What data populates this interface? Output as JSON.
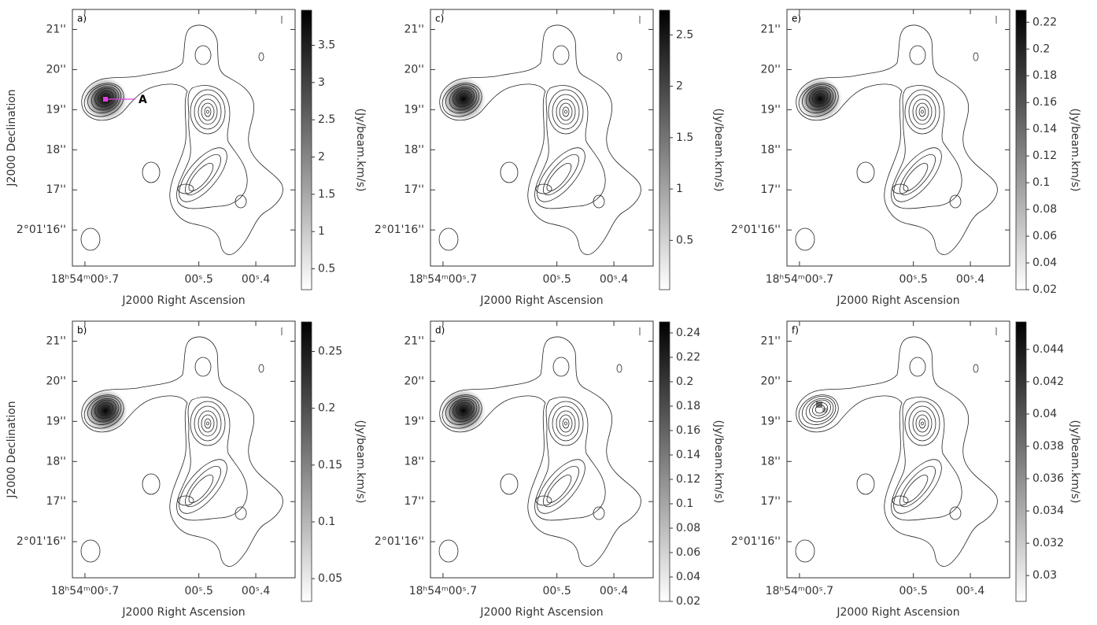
{
  "chart_data": [
    {
      "type": "contour-map",
      "panel_label": "a)",
      "annotation": "A",
      "xlabel": "J2000 Right Ascension",
      "ylabel": "J2000 Declination",
      "colorbar_label": "(Jy/beam.km/s)",
      "xlim": [
        0.722,
        0.331
      ],
      "xticks": [
        {
          "value": 0.7,
          "label": "18ʰ54ᵐ00ˢ.7"
        },
        {
          "value": 0.5,
          "label": "00ˢ.5"
        },
        {
          "value": 0.4,
          "label": "00ˢ.4"
        }
      ],
      "ylim": [
        15.1,
        21.5
      ],
      "yticks": [
        {
          "value": 16,
          "label": "2°01'16''"
        },
        {
          "value": 17,
          "label": "17''"
        },
        {
          "value": 18,
          "label": "18''"
        },
        {
          "value": 19,
          "label": "19''"
        },
        {
          "value": 20,
          "label": "20''"
        },
        {
          "value": 21,
          "label": "21''"
        }
      ],
      "clim": [
        0.22,
        3.97
      ],
      "cticks": [
        0.5,
        1,
        1.5,
        2,
        2.5,
        3,
        3.5
      ]
    },
    {
      "type": "contour-map",
      "panel_label": "b)",
      "xlabel": "J2000 Right Ascension",
      "ylabel": "J2000 Declination",
      "colorbar_label": "(Jy/beam.km/s)",
      "xlim": [
        0.722,
        0.331
      ],
      "xticks": [
        {
          "value": 0.7,
          "label": "18ʰ54ᵐ00ˢ.7"
        },
        {
          "value": 0.5,
          "label": "00ˢ.5"
        },
        {
          "value": 0.4,
          "label": "00ˢ.4"
        }
      ],
      "ylim": [
        15.1,
        21.5
      ],
      "yticks": [
        {
          "value": 16,
          "label": "2°01'16''"
        },
        {
          "value": 17,
          "label": "17''"
        },
        {
          "value": 18,
          "label": "18''"
        },
        {
          "value": 19,
          "label": "19''"
        },
        {
          "value": 20,
          "label": "20''"
        },
        {
          "value": 21,
          "label": "21''"
        }
      ],
      "clim": [
        0.03,
        0.276
      ],
      "cticks": [
        0.05,
        0.1,
        0.15,
        0.2,
        0.25
      ]
    },
    {
      "type": "contour-map",
      "panel_label": "c)",
      "xlabel": "J2000 Right Ascension",
      "colorbar_label": "(Jy/beam.km/s)",
      "xlim": [
        0.722,
        0.331
      ],
      "xticks": [
        {
          "value": 0.7,
          "label": "18ʰ54ᵐ00ˢ.7"
        },
        {
          "value": 0.5,
          "label": "00ˢ.5"
        },
        {
          "value": 0.4,
          "label": "00ˢ.4"
        }
      ],
      "ylim": [
        15.1,
        21.5
      ],
      "yticks": [
        {
          "value": 16,
          "label": "2°01'16''"
        },
        {
          "value": 17,
          "label": "17''"
        },
        {
          "value": 18,
          "label": "18''"
        },
        {
          "value": 19,
          "label": "19''"
        },
        {
          "value": 20,
          "label": "20''"
        },
        {
          "value": 21,
          "label": "21''"
        }
      ],
      "clim": [
        0.02,
        2.74
      ],
      "cticks": [
        0.5,
        1,
        1.5,
        2,
        2.5
      ]
    },
    {
      "type": "contour-map",
      "panel_label": "d)",
      "xlabel": "J2000 Right Ascension",
      "colorbar_label": "(Jy/beam.km/s)",
      "xlim": [
        0.722,
        0.331
      ],
      "xticks": [
        {
          "value": 0.7,
          "label": "18ʰ54ᵐ00ˢ.7"
        },
        {
          "value": 0.5,
          "label": "00ˢ.5"
        },
        {
          "value": 0.4,
          "label": "00ˢ.4"
        }
      ],
      "ylim": [
        15.1,
        21.5
      ],
      "yticks": [
        {
          "value": 16,
          "label": "2°01'16''"
        },
        {
          "value": 17,
          "label": "17''"
        },
        {
          "value": 18,
          "label": "18''"
        },
        {
          "value": 19,
          "label": "19''"
        },
        {
          "value": 20,
          "label": "20''"
        },
        {
          "value": 21,
          "label": "21''"
        }
      ],
      "clim": [
        0.02,
        0.249
      ],
      "cticks": [
        0.02,
        0.04,
        0.06,
        0.08,
        0.1,
        0.12,
        0.14,
        0.16,
        0.18,
        0.2,
        0.22,
        0.24
      ]
    },
    {
      "type": "contour-map",
      "panel_label": "e)",
      "xlabel": "J2000 Right Ascension",
      "colorbar_label": "(Jy/beam.km/s)",
      "xlim": [
        0.722,
        0.331
      ],
      "xticks": [
        {
          "value": 0.7,
          "label": "18ʰ54ᵐ00ˢ.7"
        },
        {
          "value": 0.5,
          "label": "00ˢ.5"
        },
        {
          "value": 0.4,
          "label": "00ˢ.4"
        }
      ],
      "ylim": [
        15.1,
        21.5
      ],
      "yticks": [
        {
          "value": 16,
          "label": "2°01'16''"
        },
        {
          "value": 17,
          "label": "17''"
        },
        {
          "value": 18,
          "label": "18''"
        },
        {
          "value": 19,
          "label": "19''"
        },
        {
          "value": 20,
          "label": "20''"
        },
        {
          "value": 21,
          "label": "21''"
        }
      ],
      "clim": [
        0.02,
        0.229
      ],
      "cticks": [
        0.02,
        0.04,
        0.06,
        0.08,
        0.1,
        0.12,
        0.14,
        0.16,
        0.18,
        0.2,
        0.22
      ]
    },
    {
      "type": "contour-map",
      "panel_label": "f)",
      "xlabel": "J2000 Right Ascension",
      "colorbar_label": "(Jy/beam.km/s)",
      "xlim": [
        0.722,
        0.331
      ],
      "xticks": [
        {
          "value": 0.7,
          "label": "18ʰ54ᵐ00ˢ.7"
        },
        {
          "value": 0.5,
          "label": "00ˢ.5"
        },
        {
          "value": 0.4,
          "label": "00ˢ.4"
        }
      ],
      "ylim": [
        15.1,
        21.5
      ],
      "yticks": [
        {
          "value": 16,
          "label": "2°01'16''"
        },
        {
          "value": 17,
          "label": "17''"
        },
        {
          "value": 18,
          "label": "18''"
        },
        {
          "value": 19,
          "label": "19''"
        },
        {
          "value": 20,
          "label": "20''"
        },
        {
          "value": 21,
          "label": "21''"
        }
      ],
      "clim": [
        0.0284,
        0.0457
      ],
      "cticks": [
        0.03,
        0.032,
        0.034,
        0.036,
        0.038,
        0.04,
        0.042,
        0.044
      ]
    }
  ]
}
